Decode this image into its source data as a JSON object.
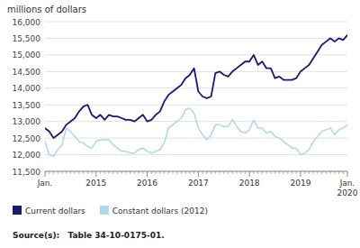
{
  "chart_data": {
    "type": "line",
    "y_label": "millions of dollars",
    "source": "Source(s):   Table 34-10-0175-01.",
    "categories": [
      "Jan.",
      null,
      null,
      null,
      null,
      null,
      null,
      null,
      null,
      null,
      null,
      null,
      "2015",
      null,
      null,
      null,
      null,
      null,
      null,
      null,
      null,
      null,
      null,
      null,
      "2016",
      null,
      null,
      null,
      null,
      null,
      null,
      null,
      null,
      null,
      null,
      null,
      "2017",
      null,
      null,
      null,
      null,
      null,
      null,
      null,
      null,
      null,
      null,
      null,
      "2018",
      null,
      null,
      null,
      null,
      null,
      null,
      null,
      null,
      null,
      null,
      null,
      "2019",
      null,
      null,
      null,
      null,
      null,
      null,
      null,
      null,
      null,
      null,
      "Jan.\n2020"
    ],
    "series": [
      {
        "name": "Current dollars",
        "color": "#1a1a6e",
        "values": [
          12800,
          12700,
          12500,
          12600,
          12700,
          12900,
          13000,
          13100,
          13300,
          13450,
          13500,
          13200,
          13100,
          13200,
          13050,
          13200,
          13150,
          13150,
          13100,
          13050,
          13050,
          13000,
          13100,
          13200,
          13000,
          13050,
          13200,
          13300,
          13600,
          13800,
          13900,
          14000,
          14100,
          14300,
          14400,
          14600,
          13900,
          13750,
          13700,
          13750,
          14450,
          14500,
          14400,
          14350,
          14500,
          14600,
          14700,
          14800,
          14800,
          15000,
          14700,
          14800,
          14600,
          14600,
          14300,
          14350,
          14250,
          14250,
          14250,
          14300,
          14500,
          14600,
          14700,
          14900,
          15100,
          15300,
          15400,
          15500,
          15400,
          15500,
          15450,
          15600
        ]
      },
      {
        "name": "Constant dollars (2012)",
        "color": "#add8e6",
        "values": [
          12400,
          12000,
          11950,
          12150,
          12300,
          12800,
          12700,
          12550,
          12400,
          12350,
          12250,
          12200,
          12400,
          12450,
          12450,
          12450,
          12300,
          12200,
          12100,
          12100,
          12050,
          12050,
          12150,
          12200,
          12100,
          12050,
          12100,
          12150,
          12350,
          12800,
          12900,
          13000,
          13100,
          13350,
          13400,
          13250,
          12800,
          12600,
          12450,
          12600,
          12900,
          12900,
          12850,
          12850,
          13050,
          12850,
          12700,
          12650,
          12750,
          13050,
          12800,
          12800,
          12650,
          12700,
          12550,
          12500,
          12400,
          12300,
          12200,
          12200,
          12000,
          12050,
          12150,
          12400,
          12550,
          12700,
          12750,
          12800,
          12600,
          12750,
          12800,
          12900
        ]
      }
    ],
    "ylim": [
      11500,
      16000
    ],
    "yticks": [
      {
        "value": 11500,
        "label": "11,500"
      },
      {
        "value": 12000,
        "label": "12,000"
      },
      {
        "value": 12500,
        "label": "12,500"
      },
      {
        "value": 13000,
        "label": "13,000"
      },
      {
        "value": 13500,
        "label": "13,500"
      },
      {
        "value": 14000,
        "label": "14,000"
      },
      {
        "value": 14500,
        "label": "14,500"
      },
      {
        "value": 15000,
        "label": "15,000"
      },
      {
        "value": 15500,
        "label": "15,500"
      },
      {
        "value": 16000,
        "label": "16,000"
      }
    ],
    "grid": true,
    "legend": "bottom"
  }
}
